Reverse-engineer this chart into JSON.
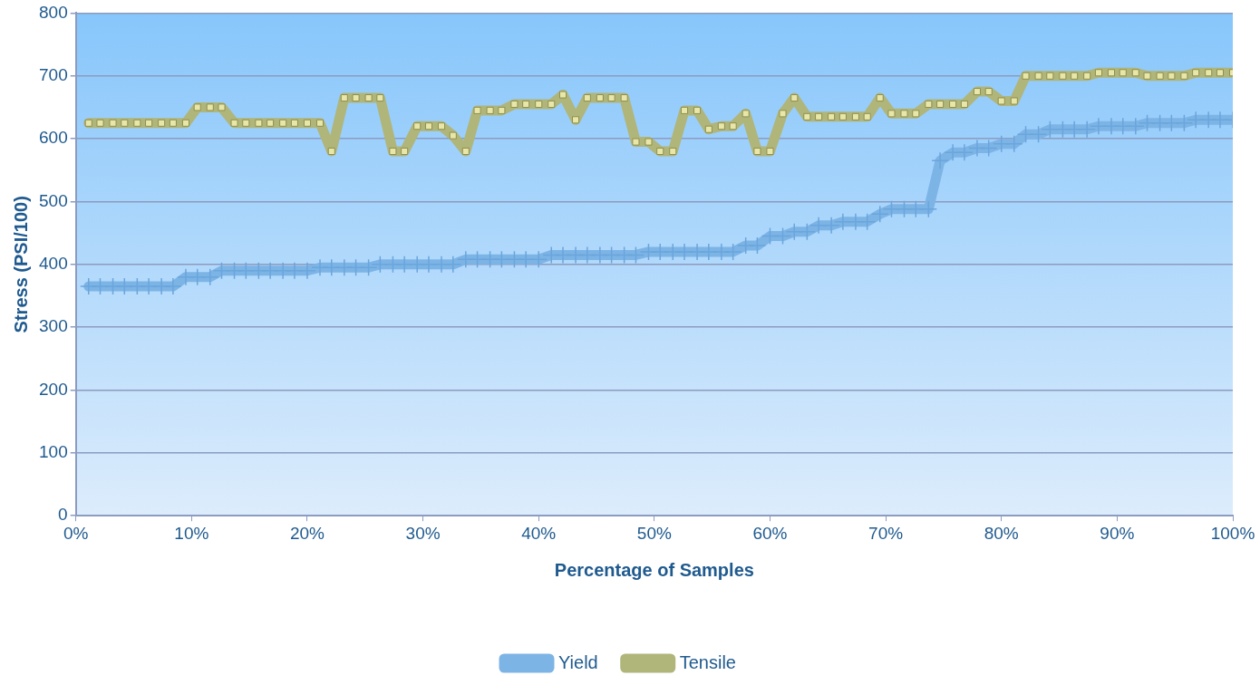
{
  "chart_data": {
    "type": "line",
    "xlabel": "Percentage of Samples",
    "ylabel": "Stress (PSI/100)",
    "x": [
      1.1,
      2.1,
      3.2,
      4.2,
      5.3,
      6.3,
      7.4,
      8.4,
      9.5,
      10.5,
      11.6,
      12.6,
      13.7,
      14.7,
      15.8,
      16.8,
      17.9,
      18.9,
      20,
      21.1,
      22.1,
      23.2,
      24.2,
      25.3,
      26.3,
      27.4,
      28.4,
      29.5,
      30.5,
      31.6,
      32.6,
      33.7,
      34.7,
      35.8,
      36.8,
      37.9,
      38.9,
      40,
      41.1,
      42.1,
      43.2,
      44.2,
      45.3,
      46.3,
      47.4,
      48.4,
      49.5,
      50.5,
      51.6,
      52.6,
      53.7,
      54.7,
      55.8,
      56.8,
      57.9,
      58.9,
      60,
      61.1,
      62.1,
      63.2,
      64.2,
      65.3,
      66.3,
      67.4,
      68.4,
      69.5,
      70.5,
      71.6,
      72.6,
      73.7,
      74.7,
      75.8,
      76.8,
      77.9,
      78.9,
      80,
      81.1,
      82.1,
      83.2,
      84.2,
      85.3,
      86.3,
      87.4,
      88.4,
      89.5,
      90.5,
      91.6,
      92.6,
      93.7,
      94.7,
      95.8,
      96.8,
      97.9,
      98.9,
      100
    ],
    "series": [
      {
        "name": "Yield",
        "color": "#7db4e6",
        "marker": "cross",
        "values": [
          365,
          365,
          365,
          365,
          365,
          365,
          365,
          365,
          380,
          380,
          380,
          390,
          390,
          390,
          390,
          390,
          390,
          390,
          390,
          395,
          395,
          395,
          395,
          395,
          400,
          400,
          400,
          400,
          400,
          400,
          400,
          408,
          408,
          408,
          408,
          408,
          408,
          408,
          415,
          415,
          415,
          415,
          415,
          415,
          415,
          415,
          420,
          420,
          420,
          420,
          420,
          420,
          420,
          420,
          430,
          430,
          445,
          445,
          452,
          452,
          462,
          462,
          468,
          468,
          468,
          480,
          488,
          488,
          488,
          488,
          565,
          578,
          578,
          585,
          585,
          592,
          592,
          607,
          607,
          615,
          615,
          615,
          615,
          620,
          620,
          620,
          620,
          625,
          625,
          625,
          625,
          630,
          630,
          630,
          630
        ]
      },
      {
        "name": "Tensile",
        "color": "#b0b57a",
        "marker": "square",
        "values": [
          625,
          625,
          625,
          625,
          625,
          625,
          625,
          625,
          625,
          650,
          650,
          650,
          625,
          625,
          625,
          625,
          625,
          625,
          625,
          625,
          580,
          665,
          665,
          665,
          665,
          580,
          580,
          620,
          620,
          620,
          605,
          580,
          645,
          645,
          645,
          655,
          655,
          655,
          655,
          670,
          630,
          665,
          665,
          665,
          665,
          595,
          595,
          580,
          580,
          645,
          645,
          615,
          620,
          620,
          640,
          580,
          580,
          640,
          665,
          635,
          635,
          635,
          635,
          635,
          635,
          665,
          640,
          640,
          640,
          655,
          655,
          655,
          655,
          675,
          675,
          660,
          660,
          700,
          700,
          700,
          700,
          700,
          700,
          705,
          705,
          705,
          705,
          700,
          700,
          700,
          700,
          705,
          705,
          705,
          705
        ]
      }
    ],
    "xlim": [
      0,
      100
    ],
    "xticks": [
      {
        "value": 0,
        "label": "0%"
      },
      {
        "value": 10,
        "label": "10%"
      },
      {
        "value": 20,
        "label": "20%"
      },
      {
        "value": 30,
        "label": "30%"
      },
      {
        "value": 40,
        "label": "40%"
      },
      {
        "value": 50,
        "label": "50%"
      },
      {
        "value": 60,
        "label": "60%"
      },
      {
        "value": 70,
        "label": "70%"
      },
      {
        "value": 80,
        "label": "80%"
      },
      {
        "value": 90,
        "label": "90%"
      },
      {
        "value": 100,
        "label": "100%"
      }
    ],
    "ylim": [
      0,
      800
    ],
    "yticks": [
      0,
      100,
      200,
      300,
      400,
      500,
      600,
      700,
      800
    ],
    "grid": "y",
    "legend": "bottom",
    "line_style": "solid"
  }
}
